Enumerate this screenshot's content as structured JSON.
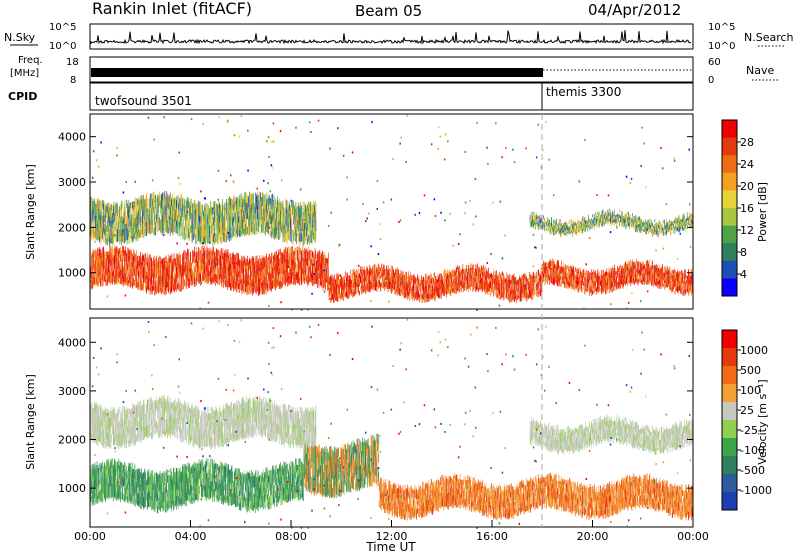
{
  "header": {
    "station": "Rankin Inlet (fitACF)",
    "beam": "Beam 05",
    "date": "04/Apr/2012"
  },
  "nsky_panel": {
    "left_label": "N.Sky",
    "right_label": "N.Search",
    "left_ticks": [
      "10^5",
      "10^0"
    ],
    "right_ticks": [
      "10^5",
      "10^0"
    ]
  },
  "freq_panel": {
    "label_top": "Freq.",
    "label_unit": "[MHz]",
    "left_ticks": [
      "18",
      "8"
    ],
    "right_ticks": [
      "60",
      "0"
    ],
    "right_label": "Nave"
  },
  "cpid_panel": {
    "label": "CPID",
    "modes": [
      {
        "name": "twofsound 3501",
        "start_hour": 0,
        "end_hour": 18
      },
      {
        "name": "themis 3300",
        "start_hour": 18,
        "end_hour": 24
      }
    ]
  },
  "chart_data": [
    {
      "type": "heatmap",
      "panel": "power",
      "ylabel": "Slant Range [km]",
      "ylim": [
        200,
        4500
      ],
      "yticks": [
        "1000",
        "2000",
        "3000",
        "4000"
      ],
      "xlim": [
        0,
        24
      ],
      "colorbar_label": "Power [dB]",
      "colorbar_ticks": [
        "28",
        "24",
        "20",
        "16",
        "12",
        "8",
        "4"
      ],
      "colorbar_colors": [
        "#0a00ff",
        "#1d4fb3",
        "#2f7f5f",
        "#4da24a",
        "#a9c640",
        "#e8d23a",
        "#f6a020",
        "#f06b14",
        "#e33a0f",
        "#f00000"
      ],
      "bands": [
        {
          "hours": [
            0,
            9.5
          ],
          "range_km": [
            600,
            1500
          ],
          "level": "high"
        },
        {
          "hours": [
            9.5,
            18
          ],
          "range_km": [
            450,
            1100
          ],
          "level": "high"
        },
        {
          "hours": [
            18,
            24
          ],
          "range_km": [
            600,
            1200
          ],
          "level": "high"
        },
        {
          "hours": [
            0,
            9
          ],
          "range_km": [
            1700,
            2700
          ],
          "level": "mid"
        },
        {
          "hours": [
            17.5,
            24
          ],
          "range_km": [
            1900,
            2300
          ],
          "level": "mid"
        }
      ]
    },
    {
      "type": "heatmap",
      "panel": "velocity",
      "xlabel": "Time UT",
      "ylabel": "Slant Range [km]",
      "ylim": [
        200,
        4500
      ],
      "yticks": [
        "1000",
        "2000",
        "3000",
        "4000"
      ],
      "xlim": [
        0,
        24
      ],
      "xticks": [
        "00:00",
        "04:00",
        "08:00",
        "12:00",
        "16:00",
        "20:00",
        "00:00"
      ],
      "colorbar_label": "Velocity [m s⁻¹]",
      "colorbar_ticks": [
        "1000",
        "500",
        "100",
        "25",
        "-25",
        "-100",
        "-500",
        "-1000"
      ],
      "colorbar_colors": [
        "#1d3fb3",
        "#2a5d9a",
        "#2f7f5f",
        "#3aa54a",
        "#8fcf52",
        "#c8c8c0",
        "#f5a033",
        "#f06b14",
        "#e43a0f",
        "#f00000"
      ],
      "bands": [
        {
          "hours": [
            0,
            8.5
          ],
          "range_km": [
            600,
            1500
          ],
          "level": "toward"
        },
        {
          "hours": [
            8.5,
            11.5
          ],
          "range_km": [
            900,
            2000
          ],
          "level": "mixed"
        },
        {
          "hours": [
            11.5,
            24
          ],
          "range_km": [
            450,
            1200
          ],
          "level": "away"
        },
        {
          "hours": [
            0,
            9
          ],
          "range_km": [
            1900,
            2800
          ],
          "level": "ground"
        },
        {
          "hours": [
            17.5,
            24
          ],
          "range_km": [
            1800,
            2400
          ],
          "level": "ground"
        }
      ]
    }
  ]
}
